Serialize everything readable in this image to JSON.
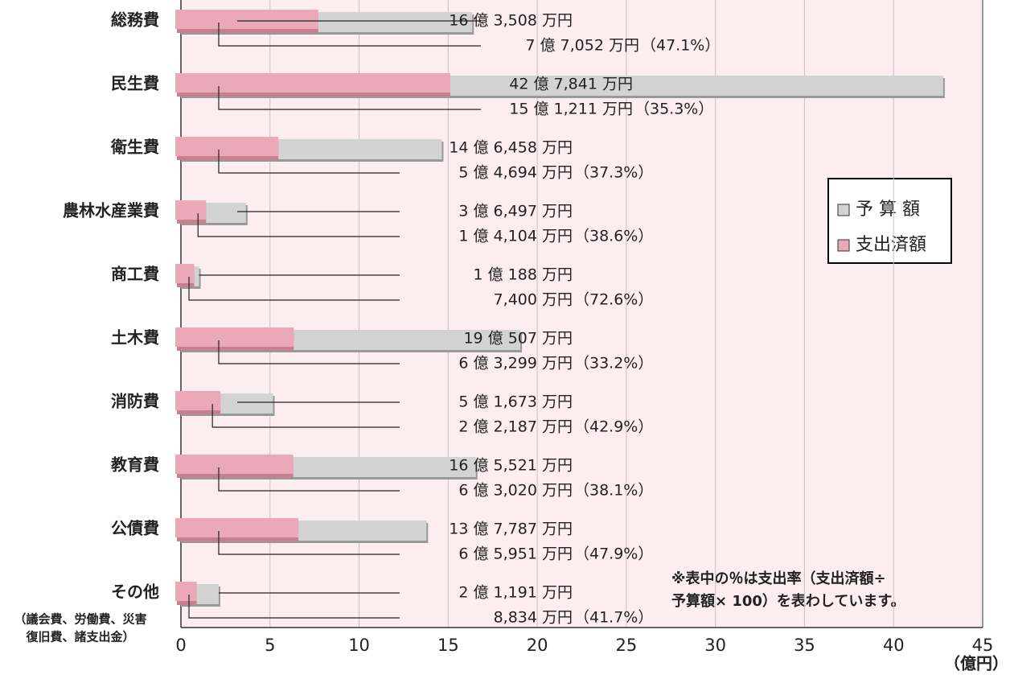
{
  "chart_data": {
    "type": "bar",
    "orientation": "horizontal",
    "categories": [
      "総務費",
      "民生費",
      "衛生費",
      "農林水産業費",
      "商工費",
      "土木費",
      "消防費",
      "教育費",
      "公債費",
      "その他"
    ],
    "category_note": [
      "（議会費、労働費、災害",
      "復旧費、諸支出金）"
    ],
    "series": [
      {
        "name": "予 算 額",
        "color": "#d3d3d3",
        "values": [
          16.3508,
          42.7841,
          14.6458,
          3.6497,
          1.0188,
          19.0507,
          5.1673,
          16.5521,
          13.7787,
          2.1191
        ],
        "value_labels": [
          "16 億 3,508 万円",
          "42 億 7,841 万円",
          "14 億 6,458 万円",
          "3 億 6,497 万円",
          "1 億 188 万円",
          "19 億 507 万円",
          "5 億 1,673 万円",
          "16 億 5,521 万円",
          "13 億 7,787 万円",
          "2 億 1,191 万円"
        ]
      },
      {
        "name": "支出済額",
        "color": "#eaa8b8",
        "values": [
          7.7052,
          15.1211,
          5.4694,
          1.4104,
          0.74,
          6.3299,
          2.2187,
          6.302,
          6.5951,
          0.8834
        ],
        "value_labels": [
          "7 億 7,052 万円",
          "15 億 1,211 万円",
          "5 億 4,694 万円",
          "1 億 4,104 万円",
          "7,400 万円",
          "6 億 3,299 万円",
          "2 億 2,187 万円",
          "6 億 3,020 万円",
          "6 億 5,951 万円",
          "8,834 万円"
        ]
      }
    ],
    "rate_labels": [
      "（47.1%）",
      "（35.3%）",
      "（37.3%）",
      "（38.6%）",
      "（72.6%）",
      "（33.2%）",
      "（42.9%）",
      "（38.1%）",
      "（47.9%）",
      "（41.7%）"
    ],
    "xlim": [
      0,
      45
    ],
    "xticks": [
      0,
      5,
      10,
      15,
      20,
      25,
      30,
      35,
      40,
      45
    ],
    "xlabel": "（億円）",
    "grid": true,
    "note": [
      "※表中の％は支出率（支出済額÷",
      "予算額× 100）を表わしています。"
    ]
  }
}
